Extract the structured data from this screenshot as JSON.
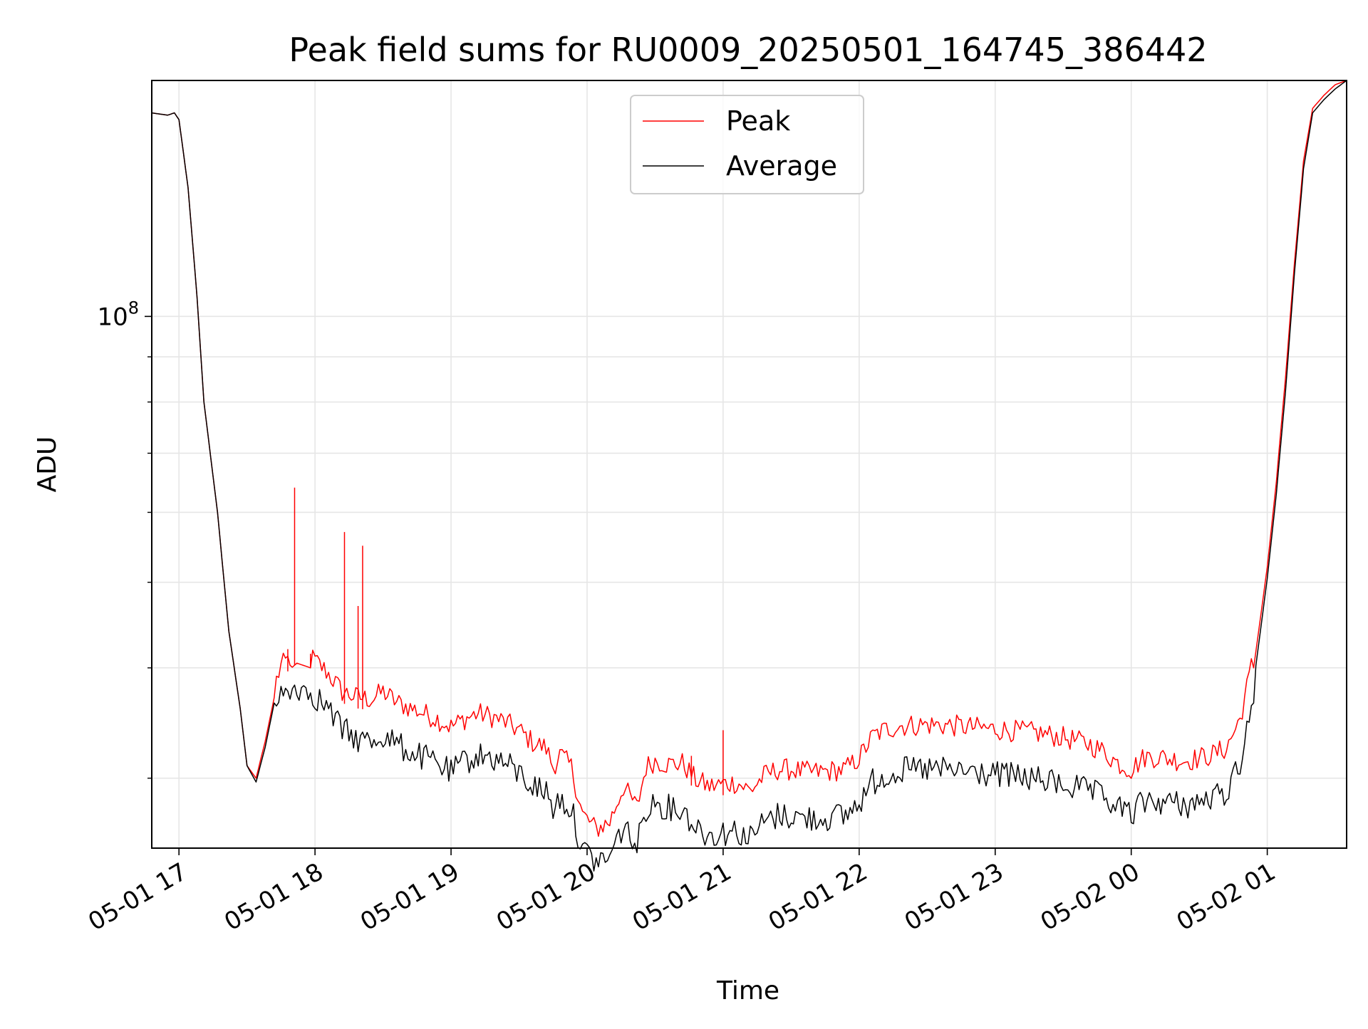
{
  "chart_data": {
    "type": "line",
    "title": "Peak field sums for RU0009_20250501_164745_386442",
    "xlabel": "Time",
    "ylabel": "ADU",
    "yscale": "log",
    "x_is_time": true,
    "xlim": [
      "2025-05-01 16:48",
      "2025-05-02 01:35"
    ],
    "ylim": [
      25000000,
      185000000
    ],
    "grid": true,
    "legend_position": "top-center",
    "x_ticks": [
      "05-01 17",
      "05-01 18",
      "05-01 19",
      "05-01 20",
      "05-01 21",
      "05-01 22",
      "05-01 23",
      "05-02 00",
      "05-02 01"
    ],
    "x_tick_times": [
      "2025-05-01 17:00",
      "2025-05-01 18:00",
      "2025-05-01 19:00",
      "2025-05-01 20:00",
      "2025-05-01 21:00",
      "2025-05-01 22:00",
      "2025-05-01 23:00",
      "2025-05-02 00:00",
      "2025-05-02 01:00"
    ],
    "y_major_ticks": [
      {
        "value": 100000000,
        "base": "10",
        "exp": "8"
      }
    ],
    "y_minor_ticks": [
      30000000,
      40000000,
      50000000,
      60000000,
      70000000,
      80000000,
      90000000
    ],
    "series": [
      {
        "name": "Peak",
        "color": "#ff0000",
        "x": [
          "2025-05-01 16:48",
          "2025-05-01 16:55",
          "2025-05-01 16:58",
          "2025-05-01 17:00",
          "2025-05-01 17:04",
          "2025-05-01 17:08",
          "2025-05-01 17:11",
          "2025-05-01 17:17",
          "2025-05-01 17:22",
          "2025-05-01 17:27",
          "2025-05-01 17:30",
          "2025-05-01 17:34",
          "2025-05-01 17:38",
          "2025-05-01 17:42",
          "2025-05-01 17:45",
          "2025-05-01 17:52",
          "2025-05-01 17:58",
          "2025-05-01 18:05",
          "2025-05-01 18:12",
          "2025-05-01 18:18",
          "2025-05-01 18:25",
          "2025-05-01 18:30",
          "2025-05-01 18:36",
          "2025-05-01 18:42",
          "2025-05-01 18:48",
          "2025-05-01 18:54",
          "2025-05-01 19:00",
          "2025-05-01 19:06",
          "2025-05-01 19:12",
          "2025-05-01 19:18",
          "2025-05-01 19:24",
          "2025-05-01 19:30",
          "2025-05-01 19:36",
          "2025-05-01 19:42",
          "2025-05-01 19:45",
          "2025-05-01 19:48",
          "2025-05-01 19:53",
          "2025-05-01 19:58",
          "2025-05-01 20:04",
          "2025-05-01 20:10",
          "2025-05-01 20:16",
          "2025-05-01 20:22",
          "2025-05-01 20:26",
          "2025-05-01 20:30",
          "2025-05-01 20:36",
          "2025-05-01 20:42",
          "2025-05-01 20:48",
          "2025-05-01 20:54",
          "2025-05-01 21:00",
          "2025-05-01 21:06",
          "2025-05-01 21:12",
          "2025-05-01 21:18",
          "2025-05-01 21:24",
          "2025-05-01 21:30",
          "2025-05-01 21:36",
          "2025-05-01 21:42",
          "2025-05-01 21:48",
          "2025-05-01 21:54",
          "2025-05-01 22:00",
          "2025-05-01 22:06",
          "2025-05-01 22:12",
          "2025-05-01 22:18",
          "2025-05-01 22:30",
          "2025-05-01 22:42",
          "2025-05-01 22:54",
          "2025-05-01 23:06",
          "2025-05-01 23:18",
          "2025-05-01 23:30",
          "2025-05-01 23:42",
          "2025-05-01 23:48",
          "2025-05-01 23:54",
          "2025-05-02 00:00",
          "2025-05-02 00:06",
          "2025-05-02 00:12",
          "2025-05-02 00:18",
          "2025-05-02 00:24",
          "2025-05-02 00:30",
          "2025-05-02 00:36",
          "2025-05-02 00:42",
          "2025-05-02 00:48",
          "2025-05-02 00:54",
          "2025-05-02 01:00",
          "2025-05-02 01:04",
          "2025-05-02 01:08",
          "2025-05-02 01:12",
          "2025-05-02 01:16",
          "2025-05-02 01:20",
          "2025-05-02 01:25",
          "2025-05-02 01:30",
          "2025-05-02 01:35"
        ],
        "values": [
          170000000,
          169000000,
          170000000,
          167000000,
          140000000,
          105000000,
          80000000,
          60000000,
          44000000,
          36000000,
          31000000,
          30000000,
          33000000,
          37000000,
          39000000,
          40500000,
          40000000,
          38500000,
          36500000,
          36000000,
          35800000,
          36500000,
          35500000,
          35000000,
          34500000,
          34000000,
          33300000,
          34000000,
          34500000,
          34200000,
          33700000,
          33000000,
          32000000,
          31500000,
          30000000,
          31000000,
          30000000,
          26500000,
          25500000,
          26000000,
          28500000,
          27000000,
          30000000,
          30500000,
          30200000,
          30300000,
          29000000,
          28500000,
          28700000,
          28800000,
          28200000,
          29300000,
          29800000,
          29800000,
          29600000,
          29600000,
          29700000,
          29800000,
          30700000,
          32500000,
          33100000,
          33400000,
          33500000,
          33400000,
          33200000,
          33000000,
          32800000,
          32400000,
          31800000,
          31200000,
          30300000,
          29800000,
          30800000,
          30800000,
          30600000,
          30500000,
          30700000,
          31000000,
          31500000,
          34000000,
          40000000,
          52000000,
          65000000,
          85000000,
          115000000,
          150000000,
          172000000,
          178000000,
          183000000,
          185000000
        ],
        "spikes": [
          {
            "x": "2025-05-01 17:51",
            "value": 64000000
          },
          {
            "x": "2025-05-01 18:13",
            "value": 57000000
          },
          {
            "x": "2025-05-01 18:21",
            "value": 55000000
          },
          {
            "x": "2025-05-01 18:19",
            "value": 47000000
          },
          {
            "x": "2025-05-01 17:48",
            "value": 42000000
          },
          {
            "x": "2025-05-01 17:58",
            "value": 41500000
          },
          {
            "x": "2025-05-01 20:46",
            "value": 31800000
          },
          {
            "x": "2025-05-01 21:00",
            "value": 34000000
          }
        ]
      },
      {
        "name": "Average",
        "color": "#000000",
        "x": [
          "2025-05-01 16:48",
          "2025-05-01 16:55",
          "2025-05-01 16:58",
          "2025-05-01 17:00",
          "2025-05-01 17:04",
          "2025-05-01 17:08",
          "2025-05-01 17:11",
          "2025-05-01 17:17",
          "2025-05-01 17:22",
          "2025-05-01 17:27",
          "2025-05-01 17:30",
          "2025-05-01 17:34",
          "2025-05-01 17:38",
          "2025-05-01 17:42",
          "2025-05-01 17:45",
          "2025-05-01 17:52",
          "2025-05-01 17:58",
          "2025-05-01 18:05",
          "2025-05-01 18:12",
          "2025-05-01 18:18",
          "2025-05-01 18:25",
          "2025-05-01 18:30",
          "2025-05-01 18:36",
          "2025-05-01 18:42",
          "2025-05-01 18:48",
          "2025-05-01 18:54",
          "2025-05-01 19:00",
          "2025-05-01 19:06",
          "2025-05-01 19:12",
          "2025-05-01 19:18",
          "2025-05-01 19:24",
          "2025-05-01 19:30",
          "2025-05-01 19:36",
          "2025-05-01 19:42",
          "2025-05-01 19:45",
          "2025-05-01 19:48",
          "2025-05-01 19:53",
          "2025-05-01 19:58",
          "2025-05-01 20:04",
          "2025-05-01 20:10",
          "2025-05-01 20:16",
          "2025-05-01 20:22",
          "2025-05-01 20:26",
          "2025-05-01 20:30",
          "2025-05-01 20:36",
          "2025-05-01 20:42",
          "2025-05-01 20:48",
          "2025-05-01 20:54",
          "2025-05-01 21:00",
          "2025-05-01 21:06",
          "2025-05-01 21:12",
          "2025-05-01 21:18",
          "2025-05-01 21:24",
          "2025-05-01 21:30",
          "2025-05-01 21:36",
          "2025-05-01 21:42",
          "2025-05-01 21:48",
          "2025-05-01 21:54",
          "2025-05-01 22:00",
          "2025-05-01 22:06",
          "2025-05-01 22:12",
          "2025-05-01 22:18",
          "2025-05-01 22:30",
          "2025-05-01 22:42",
          "2025-05-01 22:54",
          "2025-05-01 23:06",
          "2025-05-01 23:18",
          "2025-05-01 23:30",
          "2025-05-01 23:42",
          "2025-05-01 23:48",
          "2025-05-01 23:54",
          "2025-05-02 00:00",
          "2025-05-02 00:06",
          "2025-05-02 00:12",
          "2025-05-02 00:18",
          "2025-05-02 00:24",
          "2025-05-02 00:30",
          "2025-05-02 00:36",
          "2025-05-02 00:42",
          "2025-05-02 00:48",
          "2025-05-02 00:54",
          "2025-05-02 01:00",
          "2025-05-02 01:04",
          "2025-05-02 01:08",
          "2025-05-02 01:12",
          "2025-05-02 01:16",
          "2025-05-02 01:20",
          "2025-05-02 01:25",
          "2025-05-02 01:30",
          "2025-05-02 01:35"
        ],
        "values": [
          170000000,
          169000000,
          170000000,
          167000000,
          140000000,
          105000000,
          80000000,
          60000000,
          44000000,
          36000000,
          31000000,
          29700000,
          32500000,
          36500000,
          38500000,
          39500000,
          39000000,
          37500000,
          35300000,
          34500000,
          34200000,
          34800000,
          34000000,
          33300000,
          32800000,
          32300000,
          31500000,
          32500000,
          33000000,
          32800000,
          32300000,
          31500000,
          30500000,
          30000000,
          28800000,
          29500000,
          28700000,
          25800000,
          25000000,
          25300000,
          27500000,
          26000000,
          28800000,
          29200000,
          28800000,
          28700000,
          27400000,
          26800000,
          27000000,
          27100000,
          26600000,
          27700000,
          28200000,
          28200000,
          28000000,
          28000000,
          28100000,
          28200000,
          29200000,
          30800000,
          31400000,
          31700000,
          31800000,
          31700000,
          31500000,
          31300000,
          31000000,
          30600000,
          30000000,
          29500000,
          28800000,
          28300000,
          29300000,
          29300000,
          29100000,
          29000000,
          29200000,
          29500000,
          30000000,
          32500000,
          38500000,
          50500000,
          63000000,
          82000000,
          112000000,
          147000000,
          170000000,
          176000000,
          181000000,
          185000000
        ]
      }
    ]
  }
}
